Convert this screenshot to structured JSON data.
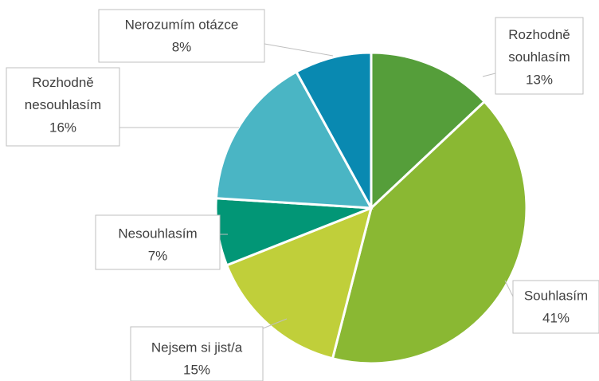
{
  "chart_data": {
    "type": "pie",
    "categories": [
      "Rozhodně souhlasím",
      "Souhlasím",
      "Nejsem si jist/a",
      "Nesouhlasím",
      "Rozhodně nesouhlasím",
      "Nerozumím otázce"
    ],
    "values": [
      13,
      41,
      15,
      7,
      16,
      8
    ],
    "value_labels": [
      "13%",
      "41%",
      "15%",
      "7%",
      "16%",
      "8%"
    ],
    "colors": [
      "#559e3a",
      "#8ab833",
      "#c0cf3a",
      "#029676",
      "#4ab5c4",
      "#0989b1"
    ]
  }
}
